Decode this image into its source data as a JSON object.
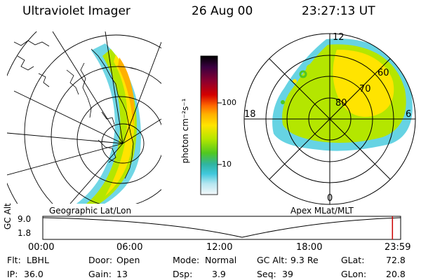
{
  "header": {
    "instrument": "Ultraviolet Imager",
    "date": "26 Aug 00",
    "time": "23:27:13 UT"
  },
  "left_panel": {
    "label": "Geographic Lat/Lon"
  },
  "right_panel": {
    "label": "Apex MLat/MLT",
    "lat_labels": [
      "80",
      "70",
      "60"
    ],
    "mlt_labels": {
      "top": "12",
      "bottom": "0",
      "left": "18",
      "right": "6"
    }
  },
  "colorbar": {
    "unit_label": "photon cm⁻²s⁻¹",
    "ticks": [
      "100",
      "10"
    ],
    "scale": "log",
    "colors": [
      "#000000",
      "#3a0040",
      "#8a0030",
      "#d40000",
      "#ff6a00",
      "#ffb000",
      "#ffe400",
      "#b4e600",
      "#50c820",
      "#30b4a0",
      "#40c8dc",
      "#b4e6f0",
      "#f4f8fa"
    ]
  },
  "timeline": {
    "axis_label": "GC Alt",
    "y_ticks": [
      "9.0",
      "1.8"
    ],
    "x_ticks": [
      "00:00",
      "06:00",
      "12:00",
      "18:00",
      "23:59"
    ],
    "current_marker_hours": 23.45,
    "marker_color": "#cc0000"
  },
  "status": {
    "flt_label": "Flt:",
    "flt_value": "LBHL",
    "ip_label": "IP:",
    "ip_value": "36.0",
    "door_label": "Door:",
    "door_value": "Open",
    "gain_label": "Gain:",
    "gain_value": "13",
    "mode_label": "Mode:",
    "mode_value": "Normal",
    "dsp_label": "Dsp:",
    "dsp_value": "3.9",
    "gcalt_label": "GC Alt:",
    "gcalt_value": "9.3 Re",
    "seq_label": "Seq:",
    "seq_value": "39",
    "glat_label": "GLat:",
    "glat_value": "72.8",
    "glon_label": "GLon:",
    "glon_value": "20.8"
  }
}
